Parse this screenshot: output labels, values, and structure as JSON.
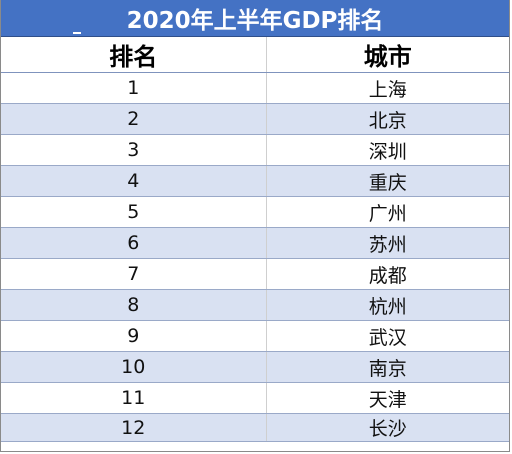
{
  "table": {
    "title": "2020年上半年GDP排名",
    "headers": [
      "排名",
      "城市"
    ],
    "rows": [
      {
        "rank": "1",
        "city": "上海"
      },
      {
        "rank": "2",
        "city": "北京"
      },
      {
        "rank": "3",
        "city": "深圳"
      },
      {
        "rank": "4",
        "city": "重庆"
      },
      {
        "rank": "5",
        "city": "广州"
      },
      {
        "rank": "6",
        "city": "苏州"
      },
      {
        "rank": "7",
        "city": "成都"
      },
      {
        "rank": "8",
        "city": "杭州"
      },
      {
        "rank": "9",
        "city": "武汉"
      },
      {
        "rank": "10",
        "city": "南京"
      },
      {
        "rank": "11",
        "city": "天津"
      },
      {
        "rank": "12",
        "city": "长沙"
      }
    ]
  },
  "colors": {
    "title_background": "#4472c4",
    "title_text": "#ffffff",
    "band_row": "#d9e1f2",
    "plain_row": "#ffffff"
  }
}
